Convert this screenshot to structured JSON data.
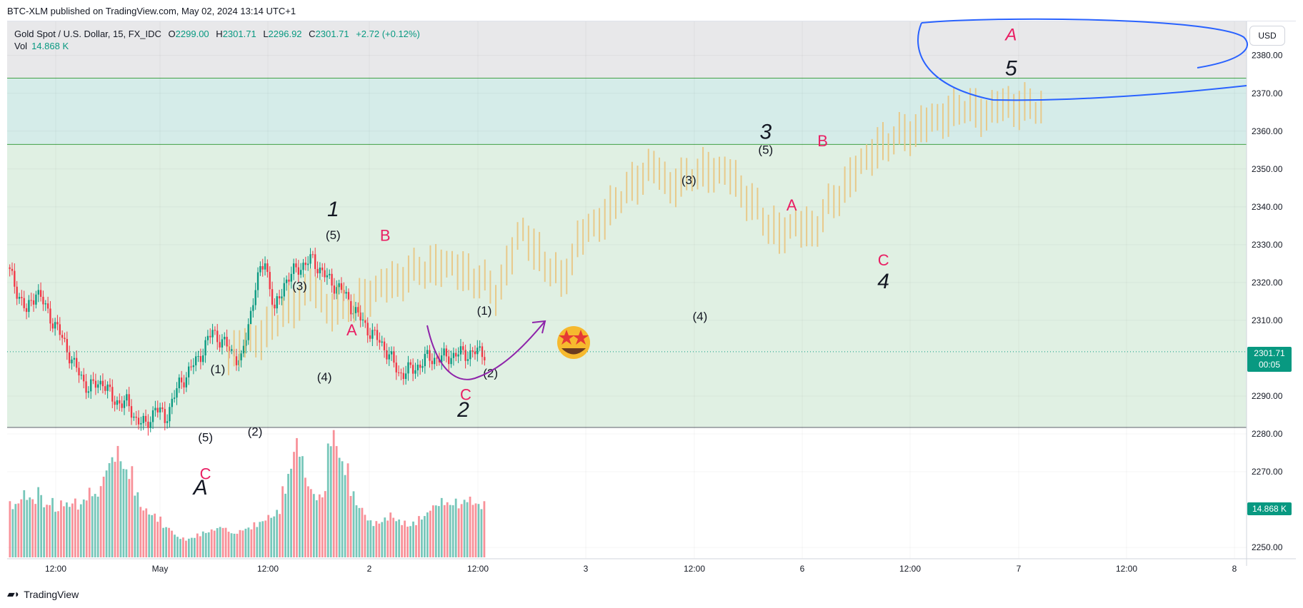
{
  "publisher_line": "BTC-XLM published on TradingView.com, May 02, 2024 13:14 UTC+1",
  "legend": {
    "symbol": "Gold Spot / U.S. Dollar, 15, FX_IDC",
    "o_label": "O",
    "o": "2299.00",
    "h_label": "H",
    "h": "2301.71",
    "l_label": "L",
    "l": "2296.92",
    "c_label": "C",
    "c": "2301.71",
    "change": "+2.72 (+0.12%)",
    "vol_label": "Vol",
    "vol": "14.868 K"
  },
  "currency_button": "USD",
  "last_price_tag": {
    "price": "2301.71",
    "countdown": "00:05",
    "color": "#089981"
  },
  "volume_tag": {
    "value": "14.868 K",
    "color": "#089981"
  },
  "footer_brand": "TradingView",
  "colors": {
    "up": "#089981",
    "down": "#f23645",
    "projection": "#e8c98a",
    "upper_zone": "#d5ece9",
    "lower_zone": "#e0f0e3",
    "top_band": "#e8e8ea",
    "label_red": "#e91e63",
    "arc_purple": "#8e24aa",
    "ellipse_blue": "#2962ff"
  },
  "chart_data": {
    "type": "candlestick",
    "price_axis": {
      "ticks": [
        2380,
        2370,
        2360,
        2350,
        2340,
        2330,
        2320,
        2310,
        2290,
        2280,
        2270,
        2250
      ],
      "tick_labels": [
        "2380.00",
        "2370.00",
        "2360.00",
        "2350.00",
        "2340.00",
        "2330.00",
        "2320.00",
        "2310.00",
        "2290.00",
        "2280.00",
        "2270.00",
        "2250.00"
      ],
      "range": [
        2247,
        2389
      ],
      "last_price": 2301.71
    },
    "time_axis": {
      "labels": [
        "12:00",
        "May",
        "12:00",
        "2",
        "12:00",
        "3",
        "12:00",
        "6",
        "12:00",
        "7",
        "12:00",
        "8"
      ]
    },
    "zones": [
      {
        "name": "upper",
        "from": 2356.5,
        "to": 2374
      },
      {
        "name": "lower",
        "from": 2281.7,
        "to": 2356.5
      }
    ],
    "price_path": [
      {
        "t": 0.0,
        "p": 2324
      },
      {
        "t": 0.02,
        "p": 2318
      },
      {
        "t": 0.04,
        "p": 2312
      },
      {
        "t": 0.06,
        "p": 2318
      },
      {
        "t": 0.09,
        "p": 2311
      },
      {
        "t": 0.12,
        "p": 2304
      },
      {
        "t": 0.14,
        "p": 2298
      },
      {
        "t": 0.17,
        "p": 2292
      },
      {
        "t": 0.2,
        "p": 2294
      },
      {
        "t": 0.22,
        "p": 2289
      },
      {
        "t": 0.25,
        "p": 2288
      },
      {
        "t": 0.27,
        "p": 2284
      },
      {
        "t": 0.29,
        "p": 2282
      },
      {
        "t": 0.31,
        "p": 2287
      },
      {
        "t": 0.33,
        "p": 2284
      },
      {
        "t": 0.36,
        "p": 2293
      },
      {
        "t": 0.4,
        "p": 2300
      },
      {
        "t": 0.43,
        "p": 2307
      },
      {
        "t": 0.46,
        "p": 2303
      },
      {
        "t": 0.49,
        "p": 2299
      },
      {
        "t": 0.52,
        "p": 2319
      },
      {
        "t": 0.54,
        "p": 2326
      },
      {
        "t": 0.56,
        "p": 2312
      },
      {
        "t": 0.58,
        "p": 2320
      },
      {
        "t": 0.61,
        "p": 2324
      },
      {
        "t": 0.64,
        "p": 2326
      },
      {
        "t": 0.67,
        "p": 2321
      },
      {
        "t": 0.7,
        "p": 2318
      },
      {
        "t": 0.73,
        "p": 2312
      },
      {
        "t": 0.76,
        "p": 2307
      },
      {
        "t": 0.79,
        "p": 2303
      },
      {
        "t": 0.82,
        "p": 2296
      },
      {
        "t": 0.85,
        "p": 2297
      },
      {
        "t": 0.88,
        "p": 2300
      },
      {
        "t": 0.91,
        "p": 2300
      },
      {
        "t": 0.94,
        "p": 2301
      },
      {
        "t": 1.0,
        "p": 2301.7
      }
    ],
    "projection_path": [
      {
        "t": 0.0,
        "p": 2301
      },
      {
        "t": 0.04,
        "p": 2306
      },
      {
        "t": 0.08,
        "p": 2314
      },
      {
        "t": 0.1,
        "p": 2319
      },
      {
        "t": 0.12,
        "p": 2314
      },
      {
        "t": 0.15,
        "p": 2313
      },
      {
        "t": 0.18,
        "p": 2318
      },
      {
        "t": 0.22,
        "p": 2322
      },
      {
        "t": 0.26,
        "p": 2325
      },
      {
        "t": 0.3,
        "p": 2322
      },
      {
        "t": 0.33,
        "p": 2317
      },
      {
        "t": 0.36,
        "p": 2334
      },
      {
        "t": 0.39,
        "p": 2325
      },
      {
        "t": 0.41,
        "p": 2320
      },
      {
        "t": 0.43,
        "p": 2331
      },
      {
        "t": 0.46,
        "p": 2337
      },
      {
        "t": 0.49,
        "p": 2344
      },
      {
        "t": 0.52,
        "p": 2351
      },
      {
        "t": 0.54,
        "p": 2346
      },
      {
        "t": 0.56,
        "p": 2347
      },
      {
        "t": 0.59,
        "p": 2350
      },
      {
        "t": 0.62,
        "p": 2348
      },
      {
        "t": 0.64,
        "p": 2342
      },
      {
        "t": 0.66,
        "p": 2336
      },
      {
        "t": 0.68,
        "p": 2333
      },
      {
        "t": 0.7,
        "p": 2335
      },
      {
        "t": 0.72,
        "p": 2334
      },
      {
        "t": 0.74,
        "p": 2340
      },
      {
        "t": 0.77,
        "p": 2349
      },
      {
        "t": 0.8,
        "p": 2356
      },
      {
        "t": 0.84,
        "p": 2360
      },
      {
        "t": 0.87,
        "p": 2363
      },
      {
        "t": 0.9,
        "p": 2366
      },
      {
        "t": 0.93,
        "p": 2365
      },
      {
        "t": 0.96,
        "p": 2367
      },
      {
        "t": 1.0,
        "p": 2366
      }
    ],
    "volume_profile": [
      0.43,
      0.45,
      0.52,
      0.51,
      0.48,
      0.55,
      0.43,
      0.47,
      0.4,
      0.46,
      0.44,
      0.47,
      0.43,
      0.5,
      0.55,
      0.52,
      0.63,
      0.78,
      0.85,
      0.86,
      0.74,
      0.7,
      0.55,
      0.42,
      0.38,
      0.36,
      0.32,
      0.26,
      0.24,
      0.18,
      0.16,
      0.15,
      0.17,
      0.19,
      0.21,
      0.22,
      0.24,
      0.26,
      0.23,
      0.2,
      0.21,
      0.24,
      0.25,
      0.27,
      0.3,
      0.33,
      0.35,
      0.39,
      0.56,
      0.72,
      0.95,
      0.88,
      0.64,
      0.55,
      0.5,
      0.54,
      0.98,
      1.0,
      0.82,
      0.73,
      0.55,
      0.44,
      0.38,
      0.31,
      0.28,
      0.3,
      0.33,
      0.35,
      0.31,
      0.29,
      0.27,
      0.29,
      0.33,
      0.36,
      0.42,
      0.45,
      0.47,
      0.45,
      0.46,
      0.44,
      0.49,
      0.47,
      0.45,
      0.43
    ],
    "wave_labels": [
      {
        "text": "1",
        "p": 2337.5,
        "t": 0.263,
        "style": "big"
      },
      {
        "text": "(5)",
        "p": 2331.5,
        "t": 0.263,
        "style": "paren"
      },
      {
        "text": "B",
        "p": 2331,
        "t": 0.305,
        "style": "red"
      },
      {
        "text": "(3)",
        "p": 2318,
        "t": 0.236,
        "style": "paren"
      },
      {
        "text": "A",
        "p": 2306,
        "t": 0.278,
        "style": "red"
      },
      {
        "text": "(4)",
        "p": 2294,
        "t": 0.256,
        "style": "paren"
      },
      {
        "text": "(1)",
        "p": 2296,
        "t": 0.17,
        "style": "paren"
      },
      {
        "text": "(5)",
        "p": 2278,
        "t": 0.16,
        "style": "paren"
      },
      {
        "text": "(2)",
        "p": 2279.5,
        "t": 0.2,
        "style": "paren"
      },
      {
        "text": "C",
        "p": 2268,
        "t": 0.16,
        "style": "red"
      },
      {
        "text": "A",
        "p": 2264,
        "t": 0.156,
        "style": "big"
      },
      {
        "text": "(1)",
        "p": 2311.5,
        "t": 0.385,
        "style": "paren"
      },
      {
        "text": "(2)",
        "p": 2295,
        "t": 0.39,
        "style": "paren"
      },
      {
        "text": "C",
        "p": 2289,
        "t": 0.37,
        "style": "red"
      },
      {
        "text": "2",
        "p": 2284.5,
        "t": 0.368,
        "style": "big"
      },
      {
        "text": "(3)",
        "p": 2346,
        "t": 0.55,
        "style": "paren"
      },
      {
        "text": "(4)",
        "p": 2310,
        "t": 0.559,
        "style": "paren"
      },
      {
        "text": "3",
        "p": 2358,
        "t": 0.612,
        "style": "big"
      },
      {
        "text": "(5)",
        "p": 2354,
        "t": 0.612,
        "style": "paren"
      },
      {
        "text": "B",
        "p": 2356,
        "t": 0.658,
        "style": "red"
      },
      {
        "text": "A",
        "p": 2339,
        "t": 0.633,
        "style": "red"
      },
      {
        "text": "C",
        "p": 2324.5,
        "t": 0.707,
        "style": "red"
      },
      {
        "text": "4",
        "p": 2318.5,
        "t": 0.707,
        "style": "big"
      },
      {
        "text": "A",
        "p": 2384,
        "t": 0.81,
        "style": "red-italic"
      },
      {
        "text": "5",
        "p": 2374.8,
        "t": 0.81,
        "style": "big"
      }
    ],
    "annotations": [
      "curved-arrow",
      "emoji",
      "ellipse"
    ]
  }
}
